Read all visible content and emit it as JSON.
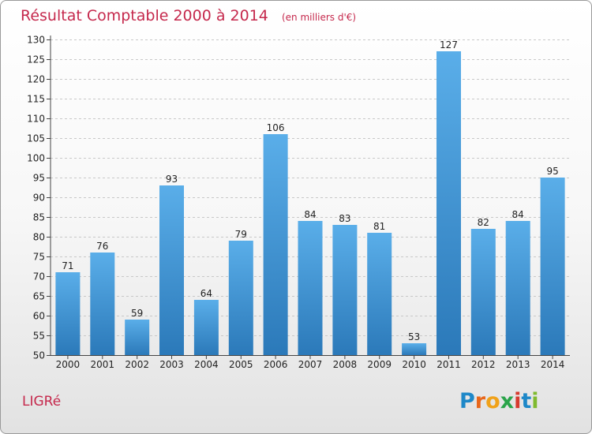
{
  "chart_data": {
    "type": "bar",
    "title": "Résultat Comptable 2000 à 2014",
    "subtitle": "(en milliers d'€)",
    "categories": [
      "2000",
      "2001",
      "2002",
      "2003",
      "2004",
      "2005",
      "2006",
      "2007",
      "2008",
      "2009",
      "2010",
      "2011",
      "2012",
      "2013",
      "2014"
    ],
    "values": [
      71,
      76,
      59,
      93,
      64,
      79,
      106,
      84,
      83,
      81,
      53,
      127,
      82,
      84,
      95
    ],
    "ylim": [
      50,
      130
    ],
    "yticks": [
      50,
      55,
      60,
      65,
      70,
      75,
      80,
      85,
      90,
      95,
      100,
      105,
      110,
      115,
      120,
      125,
      130
    ],
    "grid": true,
    "xlabel": "",
    "ylabel": ""
  },
  "footer": {
    "place_name": "LIGRé",
    "logo_letters": [
      "P",
      "r",
      "o",
      "x",
      "i",
      "t",
      "i"
    ]
  },
  "colors": {
    "bar_top": "#5aaee9",
    "bar_bottom": "#2b79b9",
    "title": "#c5284c",
    "logo": [
      "#1e88c8",
      "#e8671b",
      "#f0a21a",
      "#2aa44a",
      "#d63b2f",
      "#1e88c8",
      "#7fba2f"
    ]
  }
}
